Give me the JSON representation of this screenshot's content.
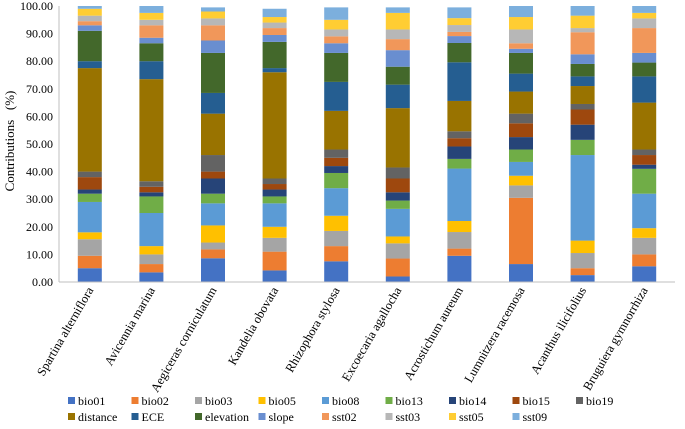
{
  "chart_data": {
    "type": "bar",
    "stacked": true,
    "title": "",
    "xlabel": "",
    "ylabel": "Contributions   (%)",
    "ylim": [
      0,
      100
    ],
    "ytick_step": 10,
    "grid": false,
    "legend_position": "bottom",
    "categories": [
      "Spartina alterniflora",
      "Avicennia marina",
      "Aegiceras corniculatum",
      "Kandelia obovata",
      "Rhizophora stylosa",
      "Excoecaria agallocha",
      "Acrostichum aureum",
      "Lumnitzera racemosa",
      "Acanthus ilicifolius",
      "Bruguiera gymnorrhiza"
    ],
    "series": [
      {
        "name": "bio01",
        "color": "#4472C4",
        "values": [
          5.0,
          3.5,
          8.6,
          4.2,
          7.5,
          2.0,
          9.5,
          6.5,
          2.5,
          5.7
        ]
      },
      {
        "name": "bio02",
        "color": "#ED7D31",
        "values": [
          4.5,
          3.0,
          3.2,
          6.8,
          5.5,
          6.5,
          2.6,
          24.0,
          2.5,
          4.3
        ]
      },
      {
        "name": "bio03",
        "color": "#A5A5A5",
        "values": [
          6.0,
          3.5,
          2.5,
          5.0,
          5.5,
          5.5,
          6.0,
          4.5,
          5.5,
          6.0
        ]
      },
      {
        "name": "bio05",
        "color": "#FFC000",
        "values": [
          2.5,
          3.0,
          6.2,
          4.0,
          5.5,
          2.5,
          4.0,
          3.5,
          4.5,
          3.5
        ]
      },
      {
        "name": "bio08",
        "color": "#5B9BD5",
        "values": [
          11.0,
          12.0,
          8.0,
          8.5,
          10.0,
          10.0,
          19.0,
          5.0,
          31.0,
          12.5
        ]
      },
      {
        "name": "bio13",
        "color": "#70AD47",
        "values": [
          3.0,
          6.0,
          3.5,
          2.5,
          5.5,
          3.0,
          3.5,
          4.5,
          5.5,
          9.0
        ]
      },
      {
        "name": "bio14",
        "color": "#264478",
        "values": [
          1.5,
          1.5,
          5.5,
          2.5,
          2.5,
          3.0,
          4.5,
          4.5,
          5.5,
          1.5
        ]
      },
      {
        "name": "bio15",
        "color": "#9E480E",
        "values": [
          4.5,
          2.0,
          2.5,
          2.0,
          3.0,
          5.0,
          3.0,
          5.0,
          5.5,
          3.5
        ]
      },
      {
        "name": "bio19",
        "color": "#636363",
        "values": [
          2.0,
          2.0,
          6.0,
          2.0,
          3.0,
          4.0,
          2.5,
          3.5,
          2.0,
          2.0
        ]
      },
      {
        "name": "distance",
        "color": "#997300",
        "values": [
          37.5,
          37.0,
          15.0,
          38.5,
          14.0,
          21.5,
          11.0,
          8.0,
          6.5,
          17.0
        ]
      },
      {
        "name": "ECE",
        "color": "#255E91",
        "values": [
          2.5,
          6.5,
          7.5,
          1.5,
          10.5,
          8.5,
          14.0,
          6.5,
          3.5,
          9.5
        ]
      },
      {
        "name": "elevation",
        "color": "#43682B",
        "values": [
          11.0,
          6.5,
          14.5,
          9.5,
          10.5,
          6.5,
          7.0,
          7.5,
          4.5,
          5.0
        ]
      },
      {
        "name": "slope",
        "color": "#698ED0",
        "values": [
          2.0,
          2.0,
          4.5,
          2.5,
          3.5,
          6.0,
          2.5,
          1.5,
          3.5,
          3.5
        ]
      },
      {
        "name": "sst02",
        "color": "#F1975A",
        "values": [
          1.5,
          4.5,
          5.5,
          2.5,
          2.5,
          4.0,
          1.5,
          2.0,
          8.0,
          9.0
        ]
      },
      {
        "name": "sst03",
        "color": "#B7B7B7",
        "values": [
          2.0,
          2.0,
          2.5,
          2.0,
          2.5,
          3.5,
          2.5,
          5.0,
          1.5,
          3.5
        ]
      },
      {
        "name": "sst05",
        "color": "#FFCD33",
        "values": [
          2.5,
          2.5,
          2.5,
          2.0,
          3.5,
          6.0,
          2.5,
          4.5,
          4.5,
          2.0
        ]
      },
      {
        "name": "sst09",
        "color": "#7CAFDD",
        "values": [
          1.0,
          2.5,
          1.5,
          3.0,
          4.5,
          2.0,
          3.9,
          4.0,
          3.5,
          2.5
        ]
      }
    ]
  }
}
